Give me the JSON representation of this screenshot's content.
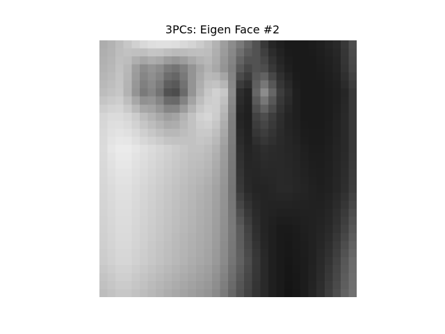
{
  "chart_data": {
    "type": "heatmap",
    "title": "3PCs: Eigen Face #2",
    "xlabel": "",
    "ylabel": "",
    "colormap": "gray",
    "axes_visible": false,
    "grid": false,
    "rows": 32,
    "cols": 32,
    "key_rows": [
      {
        "row": 0,
        "values": [
          0.68,
          0.7,
          0.74,
          0.78,
          0.82,
          0.85,
          0.87,
          0.88,
          0.88,
          0.87,
          0.85,
          0.83,
          0.8,
          0.76,
          0.7,
          0.62,
          0.55,
          0.48,
          0.4,
          0.32,
          0.22,
          0.15,
          0.12,
          0.1,
          0.1,
          0.1,
          0.11,
          0.12,
          0.14,
          0.16,
          0.22,
          0.3
        ]
      },
      {
        "row": 3,
        "values": [
          0.7,
          0.72,
          0.76,
          0.72,
          0.62,
          0.55,
          0.58,
          0.55,
          0.48,
          0.45,
          0.5,
          0.58,
          0.65,
          0.7,
          0.66,
          0.58,
          0.5,
          0.35,
          0.28,
          0.32,
          0.3,
          0.22,
          0.16,
          0.12,
          0.1,
          0.1,
          0.1,
          0.11,
          0.12,
          0.14,
          0.2,
          0.28
        ]
      },
      {
        "row": 6,
        "values": [
          0.74,
          0.76,
          0.78,
          0.7,
          0.58,
          0.48,
          0.52,
          0.45,
          0.32,
          0.3,
          0.42,
          0.58,
          0.7,
          0.78,
          0.82,
          0.78,
          0.55,
          0.18,
          0.14,
          0.4,
          0.55,
          0.4,
          0.24,
          0.18,
          0.12,
          0.1,
          0.1,
          0.1,
          0.11,
          0.12,
          0.15,
          0.22
        ]
      },
      {
        "row": 9,
        "values": [
          0.84,
          0.86,
          0.86,
          0.84,
          0.8,
          0.74,
          0.7,
          0.66,
          0.62,
          0.64,
          0.7,
          0.76,
          0.82,
          0.84,
          0.8,
          0.7,
          0.5,
          0.14,
          0.12,
          0.26,
          0.3,
          0.24,
          0.18,
          0.14,
          0.12,
          0.1,
          0.1,
          0.1,
          0.11,
          0.13,
          0.16,
          0.22
        ]
      },
      {
        "row": 13,
        "values": [
          0.86,
          0.9,
          0.92,
          0.92,
          0.9,
          0.88,
          0.86,
          0.84,
          0.82,
          0.8,
          0.78,
          0.76,
          0.76,
          0.74,
          0.7,
          0.62,
          0.48,
          0.18,
          0.14,
          0.16,
          0.18,
          0.17,
          0.16,
          0.15,
          0.14,
          0.12,
          0.11,
          0.11,
          0.12,
          0.14,
          0.16,
          0.22
        ]
      },
      {
        "row": 18,
        "values": [
          0.84,
          0.86,
          0.88,
          0.88,
          0.86,
          0.84,
          0.82,
          0.8,
          0.78,
          0.76,
          0.74,
          0.72,
          0.7,
          0.68,
          0.64,
          0.58,
          0.46,
          0.22,
          0.16,
          0.14,
          0.14,
          0.15,
          0.16,
          0.16,
          0.15,
          0.14,
          0.13,
          0.12,
          0.13,
          0.15,
          0.18,
          0.24
        ]
      },
      {
        "row": 23,
        "values": [
          0.82,
          0.84,
          0.86,
          0.86,
          0.84,
          0.82,
          0.8,
          0.78,
          0.76,
          0.74,
          0.72,
          0.7,
          0.68,
          0.66,
          0.62,
          0.56,
          0.48,
          0.36,
          0.26,
          0.18,
          0.14,
          0.12,
          0.1,
          0.1,
          0.11,
          0.12,
          0.13,
          0.14,
          0.16,
          0.2,
          0.26,
          0.34
        ]
      },
      {
        "row": 27,
        "values": [
          0.8,
          0.82,
          0.84,
          0.84,
          0.82,
          0.8,
          0.78,
          0.76,
          0.74,
          0.72,
          0.7,
          0.68,
          0.66,
          0.64,
          0.6,
          0.54,
          0.46,
          0.38,
          0.3,
          0.22,
          0.16,
          0.12,
          0.1,
          0.09,
          0.1,
          0.11,
          0.13,
          0.16,
          0.2,
          0.26,
          0.34,
          0.42
        ]
      },
      {
        "row": 31,
        "values": [
          0.74,
          0.76,
          0.78,
          0.78,
          0.76,
          0.74,
          0.72,
          0.7,
          0.68,
          0.66,
          0.64,
          0.62,
          0.6,
          0.58,
          0.54,
          0.48,
          0.4,
          0.32,
          0.26,
          0.2,
          0.16,
          0.12,
          0.1,
          0.08,
          0.09,
          0.11,
          0.14,
          0.18,
          0.24,
          0.3,
          0.38,
          0.44
        ]
      }
    ]
  }
}
